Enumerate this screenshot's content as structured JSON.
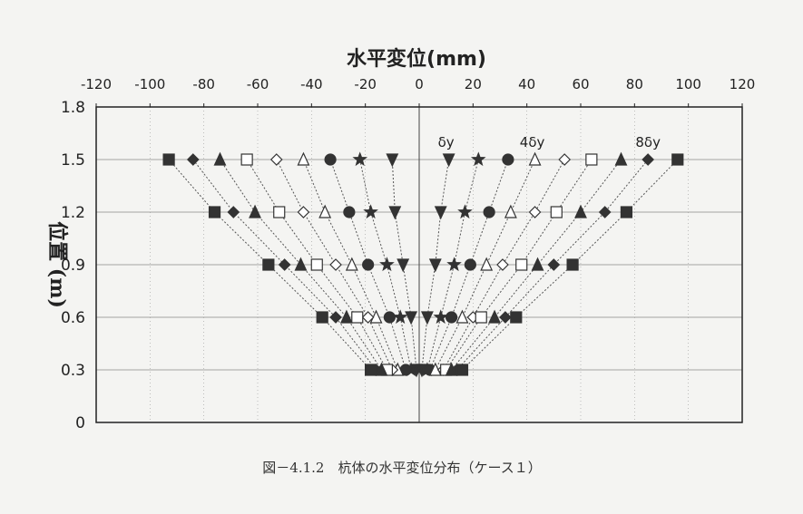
{
  "chart_data": {
    "type": "scatter",
    "title": "",
    "xlabel": "水平変位(mm)",
    "ylabel": "位置 (m)",
    "xlabel_position": "top",
    "xlim": [
      -120,
      120
    ],
    "ylim": [
      0,
      1.8
    ],
    "x_ticks": [
      "-120",
      "-100",
      "-80",
      "-60",
      "-40",
      "-20",
      "0",
      "20",
      "40",
      "60",
      "80",
      "100",
      "120"
    ],
    "y_ticks": [
      "0",
      "0.3",
      "0.6",
      "0.9",
      "1.2",
      "1.5",
      "1.8"
    ],
    "y_values": [
      0.3,
      0.6,
      0.9,
      1.2,
      1.5
    ],
    "grid": true,
    "annotations": [
      {
        "text": "δy",
        "x": 10,
        "y": 1.5
      },
      {
        "text": "4δy",
        "x": 42,
        "y": 1.5
      },
      {
        "text": "8δy",
        "x": 85,
        "y": 1.5
      }
    ],
    "series": [
      {
        "marker": "filled-triangle-down",
        "x": [
          11,
          8,
          6,
          3,
          1
        ]
      },
      {
        "marker": "filled-star",
        "x": [
          22,
          17,
          13,
          8,
          3
        ]
      },
      {
        "marker": "filled-circle",
        "x": [
          33,
          26,
          19,
          12,
          4
        ]
      },
      {
        "marker": "open-triangle-up",
        "x": [
          43,
          34,
          25,
          16,
          6
        ]
      },
      {
        "marker": "open-diamond",
        "x": [
          54,
          43,
          31,
          20,
          9
        ]
      },
      {
        "marker": "open-square",
        "x": [
          64,
          51,
          38,
          23,
          10
        ]
      },
      {
        "marker": "filled-triangle-up",
        "x": [
          75,
          60,
          44,
          28,
          12
        ]
      },
      {
        "marker": "filled-diamond",
        "x": [
          85,
          69,
          50,
          32,
          14
        ]
      },
      {
        "marker": "filled-square",
        "x": [
          96,
          77,
          57,
          36,
          16
        ]
      },
      {
        "marker": "filled-triangle-down",
        "x": [
          -10,
          -9,
          -6,
          -3,
          -1
        ]
      },
      {
        "marker": "filled-star",
        "x": [
          -22,
          -18,
          -12,
          -7,
          -3
        ]
      },
      {
        "marker": "filled-circle",
        "x": [
          -33,
          -26,
          -19,
          -11,
          -5
        ]
      },
      {
        "marker": "open-triangle-up",
        "x": [
          -43,
          -35,
          -25,
          -16,
          -8
        ]
      },
      {
        "marker": "open-diamond",
        "x": [
          -53,
          -43,
          -31,
          -19,
          -10
        ]
      },
      {
        "marker": "open-square",
        "x": [
          -64,
          -52,
          -38,
          -23,
          -12
        ]
      },
      {
        "marker": "filled-triangle-up",
        "x": [
          -74,
          -61,
          -44,
          -27,
          -14
        ]
      },
      {
        "marker": "filled-diamond",
        "x": [
          -84,
          -69,
          -50,
          -31,
          -16
        ]
      },
      {
        "marker": "filled-square",
        "x": [
          -93,
          -76,
          -56,
          -36,
          -18
        ]
      }
    ]
  },
  "caption": "図－4.1.2　杭体の水平変位分布（ケース１）",
  "colors": {
    "marker": "#333333",
    "line": "#555555",
    "axis": "#222222",
    "background": "#f4f4f2"
  }
}
